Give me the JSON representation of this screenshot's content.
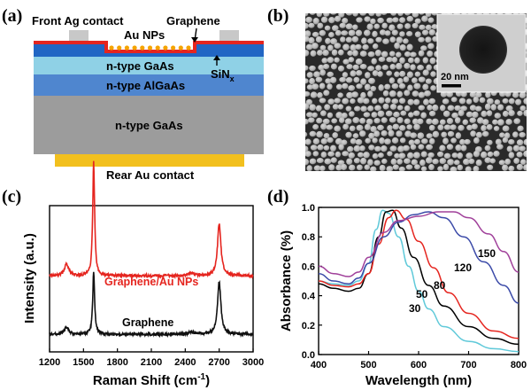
{
  "panels": {
    "a": "(a)",
    "b": "(b)",
    "c": "(c)",
    "d": "(d)"
  },
  "device": {
    "front_contact": "Front Ag contact",
    "graphene": "Graphene",
    "au_nps": "Au NPs",
    "sinx_main": "SiN",
    "sinx_sub": "x",
    "layer_gaas_top": "n-type GaAs",
    "layer_algaas": "n-type AlGaAs",
    "layer_gaas_bottom": "n-type GaAs",
    "rear_contact": "Rear Au contact",
    "colors": {
      "contact": "#c8c8c8",
      "graphene": "#e5251f",
      "sinx": "#2166c4",
      "gaas_top": "#8fd1e6",
      "algaas": "#4f86cf",
      "gaas_bottom": "#9c9c9c",
      "rear_au": "#f2c01e",
      "au_np": "#f5a300"
    }
  },
  "sem": {
    "scale_bar": "20 nm"
  },
  "chart_data": [
    {
      "type": "line",
      "panel": "c",
      "xlabel_main": "Raman Shift (cm",
      "xlabel_sup": "-1",
      "xlabel_end": ")",
      "ylabel": "Intensity (a.u.)",
      "xlim": [
        1200,
        3000
      ],
      "xticks": [
        "1200",
        "1500",
        "1800",
        "2100",
        "2400",
        "2700",
        "3000"
      ],
      "xtick_values": [
        1200,
        1500,
        1800,
        2100,
        2400,
        2700,
        3000
      ],
      "series": [
        {
          "name": "Graphene/Au NPs",
          "color": "#e5251f",
          "offset": 0.52,
          "peaks": [
            [
              1350,
              0.08,
              22
            ],
            [
              1590,
              0.78,
              10
            ],
            [
              2700,
              0.36,
              18
            ],
            [
              2450,
              0.02,
              30
            ]
          ]
        },
        {
          "name": "Graphene",
          "color": "#111111",
          "offset": 0.12,
          "peaks": [
            [
              1350,
              0.05,
              22
            ],
            [
              1590,
              0.42,
              10
            ],
            [
              2700,
              0.36,
              18
            ],
            [
              2450,
              0.015,
              30
            ]
          ]
        }
      ]
    },
    {
      "type": "line",
      "panel": "d",
      "xlabel": "Wavelength (nm)",
      "ylabel": "Absorbance (%)",
      "xlim": [
        400,
        800
      ],
      "ylim": [
        0.0,
        1.0
      ],
      "xticks": [
        "400",
        "500",
        "600",
        "700",
        "800"
      ],
      "xtick_values": [
        400,
        500,
        600,
        700,
        800
      ],
      "yticks": [
        "0.0",
        "0.2",
        "0.4",
        "0.6",
        "0.8",
        "1.0"
      ],
      "ytick_values": [
        0.0,
        0.2,
        0.4,
        0.6,
        0.8,
        1.0
      ],
      "series": [
        {
          "name": "30",
          "color": "#5fc9d9",
          "points": [
            [
              400,
              0.5
            ],
            [
              430,
              0.48
            ],
            [
              460,
              0.47
            ],
            [
              480,
              0.5
            ],
            [
              500,
              0.62
            ],
            [
              515,
              0.85
            ],
            [
              528,
              0.98
            ],
            [
              540,
              0.96
            ],
            [
              560,
              0.8
            ],
            [
              580,
              0.6
            ],
            [
              600,
              0.43
            ],
            [
              620,
              0.31
            ],
            [
              650,
              0.19
            ],
            [
              700,
              0.09
            ],
            [
              750,
              0.04
            ],
            [
              800,
              0.02
            ]
          ]
        },
        {
          "name": "50",
          "color": "#000000",
          "points": [
            [
              400,
              0.48
            ],
            [
              430,
              0.45
            ],
            [
              460,
              0.43
            ],
            [
              480,
              0.45
            ],
            [
              500,
              0.55
            ],
            [
              520,
              0.8
            ],
            [
              535,
              0.97
            ],
            [
              548,
              0.98
            ],
            [
              565,
              0.86
            ],
            [
              590,
              0.66
            ],
            [
              620,
              0.47
            ],
            [
              650,
              0.33
            ],
            [
              700,
              0.19
            ],
            [
              750,
              0.11
            ],
            [
              800,
              0.07
            ]
          ]
        },
        {
          "name": "80",
          "color": "#e5251f",
          "points": [
            [
              400,
              0.5
            ],
            [
              430,
              0.47
            ],
            [
              460,
              0.46
            ],
            [
              480,
              0.48
            ],
            [
              500,
              0.55
            ],
            [
              520,
              0.75
            ],
            [
              540,
              0.93
            ],
            [
              555,
              0.98
            ],
            [
              575,
              0.92
            ],
            [
              600,
              0.77
            ],
            [
              630,
              0.59
            ],
            [
              660,
              0.42
            ],
            [
              700,
              0.28
            ],
            [
              750,
              0.16
            ],
            [
              800,
              0.11
            ]
          ]
        },
        {
          "name": "120",
          "color": "#3b4aa8",
          "points": [
            [
              400,
              0.55
            ],
            [
              430,
              0.5
            ],
            [
              460,
              0.48
            ],
            [
              480,
              0.52
            ],
            [
              500,
              0.62
            ],
            [
              530,
              0.8
            ],
            [
              560,
              0.9
            ],
            [
              590,
              0.95
            ],
            [
              620,
              0.97
            ],
            [
              650,
              0.93
            ],
            [
              690,
              0.8
            ],
            [
              730,
              0.63
            ],
            [
              770,
              0.47
            ],
            [
              800,
              0.35
            ]
          ]
        },
        {
          "name": "150",
          "color": "#a0409a",
          "points": [
            [
              400,
              0.6
            ],
            [
              430,
              0.55
            ],
            [
              460,
              0.53
            ],
            [
              480,
              0.56
            ],
            [
              500,
              0.66
            ],
            [
              530,
              0.83
            ],
            [
              560,
              0.91
            ],
            [
              600,
              0.94
            ],
            [
              640,
              0.97
            ],
            [
              670,
              0.97
            ],
            [
              700,
              0.93
            ],
            [
              740,
              0.82
            ],
            [
              770,
              0.7
            ],
            [
              800,
              0.56
            ]
          ]
        }
      ]
    }
  ]
}
